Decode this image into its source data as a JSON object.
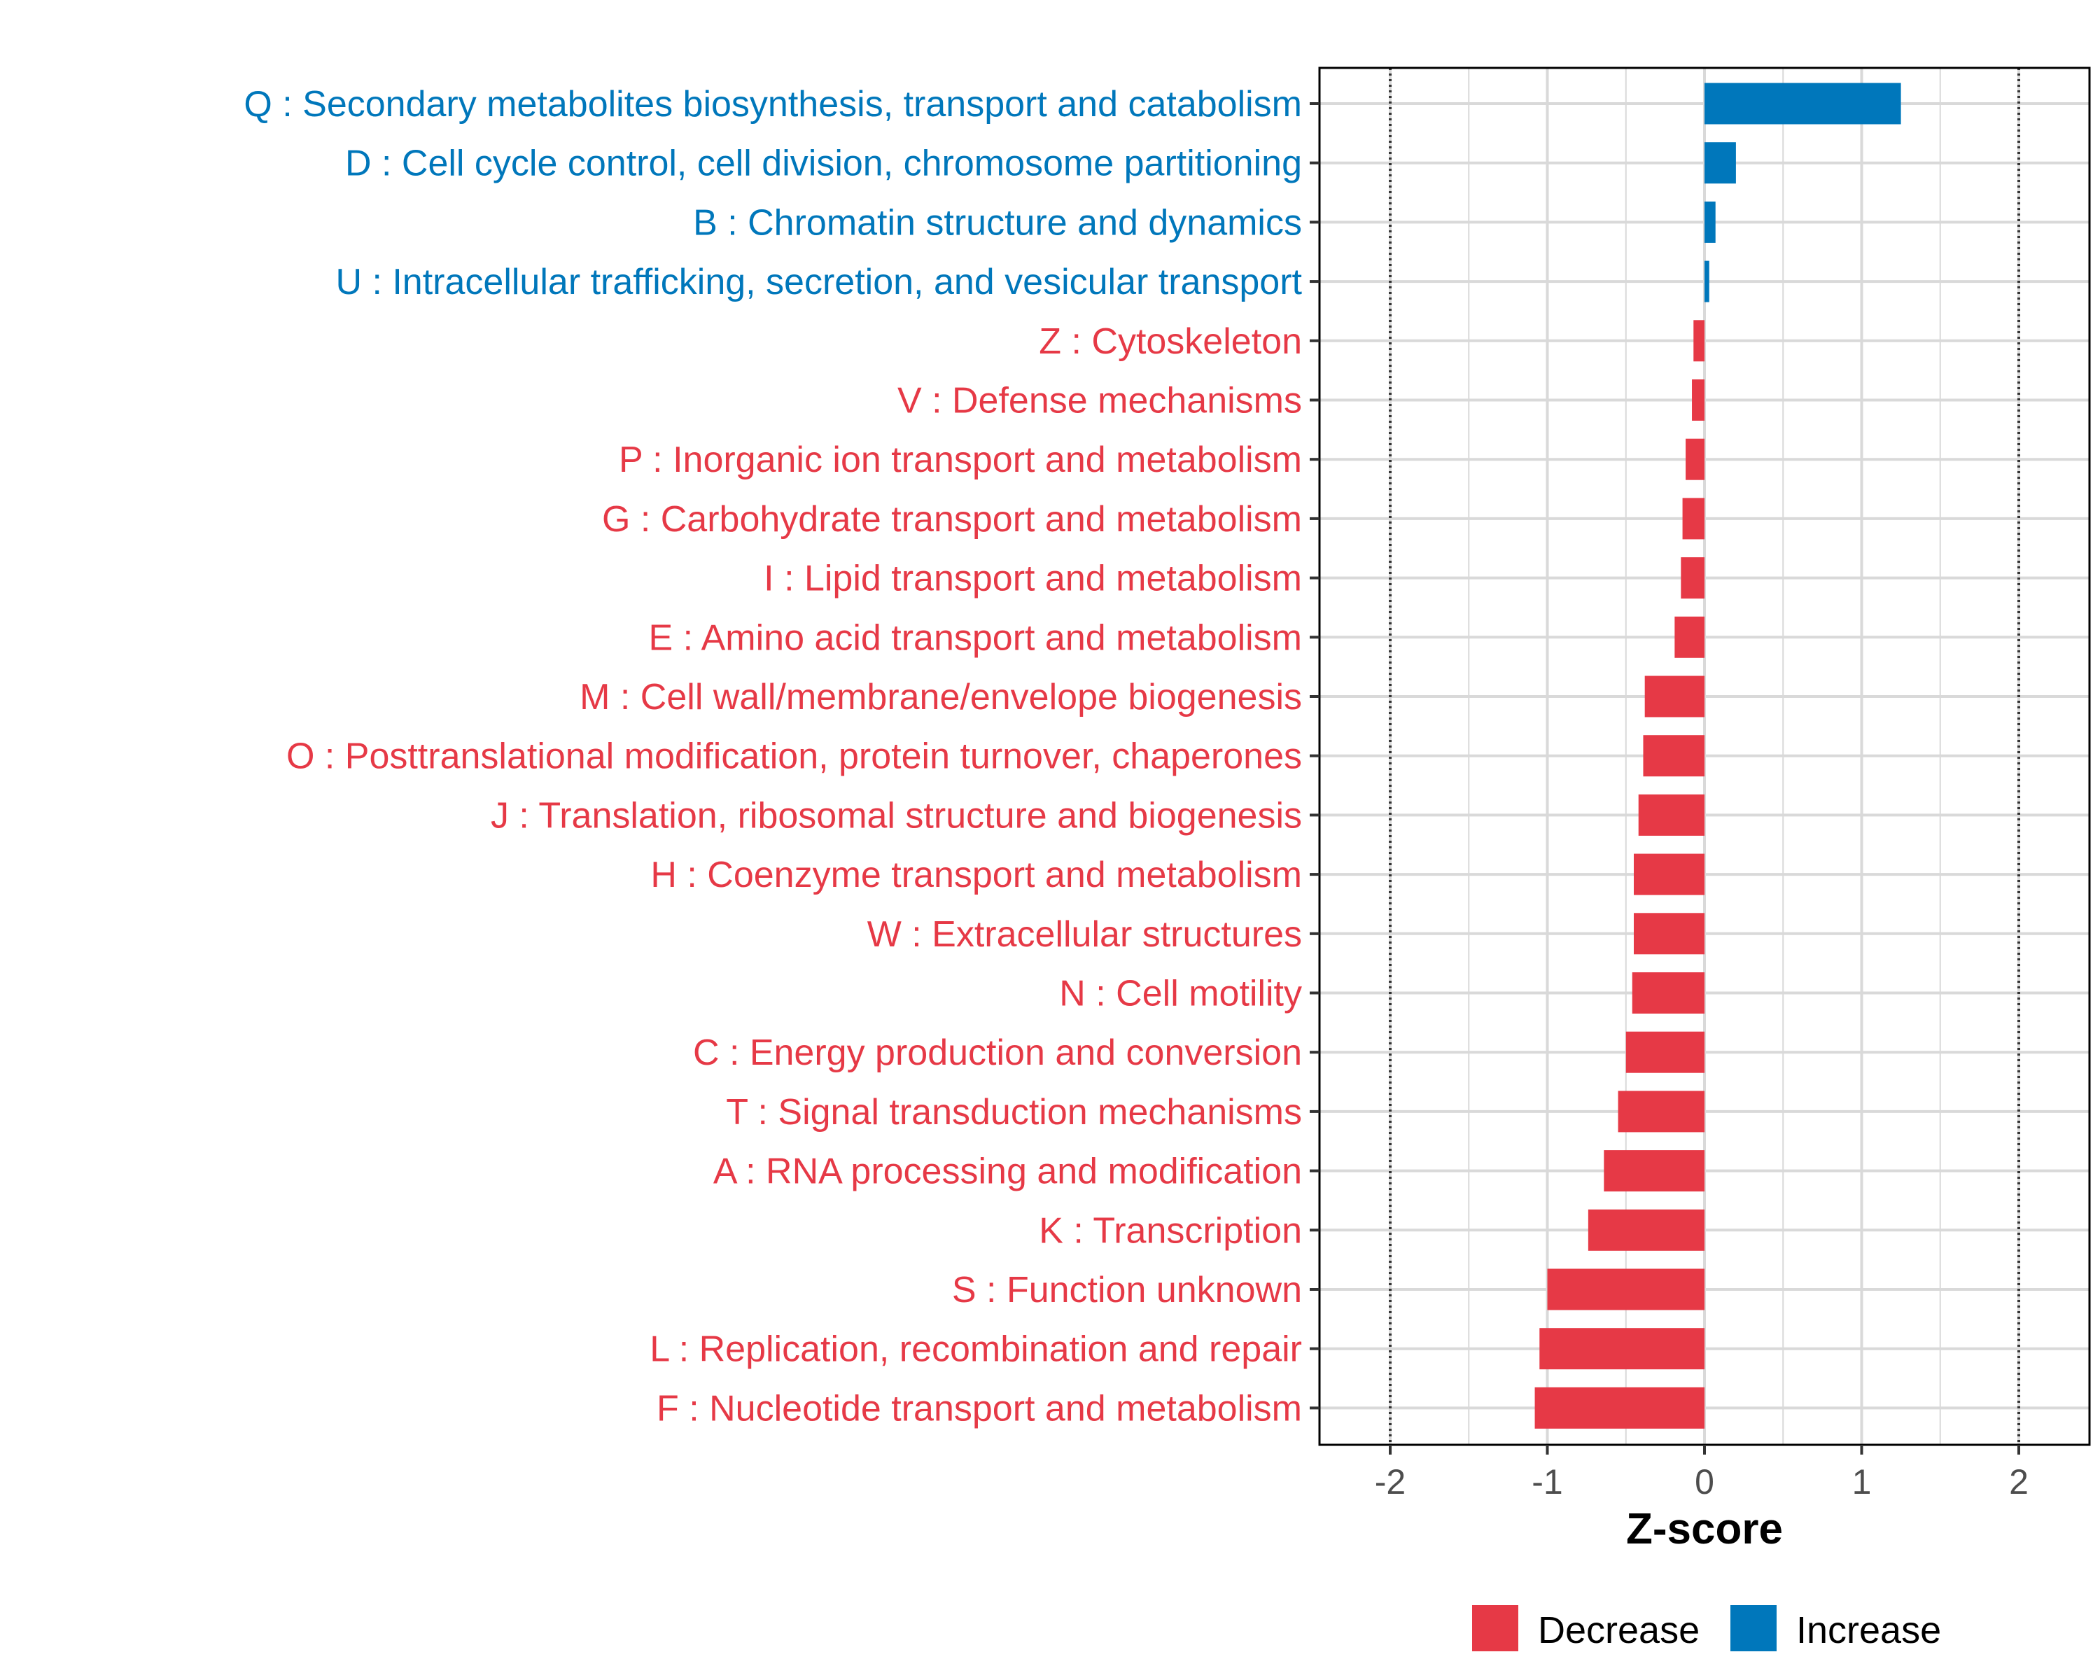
{
  "colors": {
    "decrease": "#E63946",
    "increase": "#0077BB",
    "grid": "#d9d9d9",
    "refline": "#333333",
    "axis": "#000000"
  },
  "chart_data": {
    "type": "bar",
    "orientation": "horizontal",
    "title": "",
    "xlabel": "Z-score",
    "ylabel": "",
    "xlim": [
      -2.45,
      2.45
    ],
    "xticks": [
      -2,
      -1,
      0,
      1,
      2
    ],
    "reference_lines": [
      -2,
      2
    ],
    "grid": true,
    "legend_position": "bottom",
    "categories": [
      "Q : Secondary metabolites biosynthesis, transport and catabolism",
      "D : Cell cycle control, cell division, chromosome partitioning",
      "B : Chromatin structure and dynamics",
      "U : Intracellular trafficking, secretion, and vesicular transport",
      "Z : Cytoskeleton",
      "V : Defense mechanisms",
      "P : Inorganic ion transport and metabolism",
      "G : Carbohydrate transport and metabolism",
      "I : Lipid transport and metabolism",
      "E : Amino acid transport and metabolism",
      "M : Cell wall/membrane/envelope biogenesis",
      "O : Posttranslational modification, protein turnover, chaperones",
      "J : Translation, ribosomal structure and biogenesis",
      "H : Coenzyme transport and metabolism",
      "W : Extracellular structures",
      "N : Cell motility",
      "C : Energy production and conversion",
      "T : Signal transduction mechanisms",
      "A : RNA processing and modification",
      "K : Transcription",
      "S : Function unknown",
      "L : Replication, recombination and repair",
      "F : Nucleotide transport and metabolism"
    ],
    "values": [
      1.25,
      0.2,
      0.07,
      0.03,
      -0.07,
      -0.08,
      -0.12,
      -0.14,
      -0.15,
      -0.19,
      -0.38,
      -0.39,
      -0.42,
      -0.45,
      -0.45,
      -0.46,
      -0.5,
      -0.55,
      -0.64,
      -0.74,
      -1.0,
      -1.05,
      -1.08
    ],
    "groups": [
      "Increase",
      "Increase",
      "Increase",
      "Increase",
      "Decrease",
      "Decrease",
      "Decrease",
      "Decrease",
      "Decrease",
      "Decrease",
      "Decrease",
      "Decrease",
      "Decrease",
      "Decrease",
      "Decrease",
      "Decrease",
      "Decrease",
      "Decrease",
      "Decrease",
      "Decrease",
      "Decrease",
      "Decrease",
      "Decrease"
    ],
    "legend": [
      "Decrease",
      "Increase"
    ]
  }
}
